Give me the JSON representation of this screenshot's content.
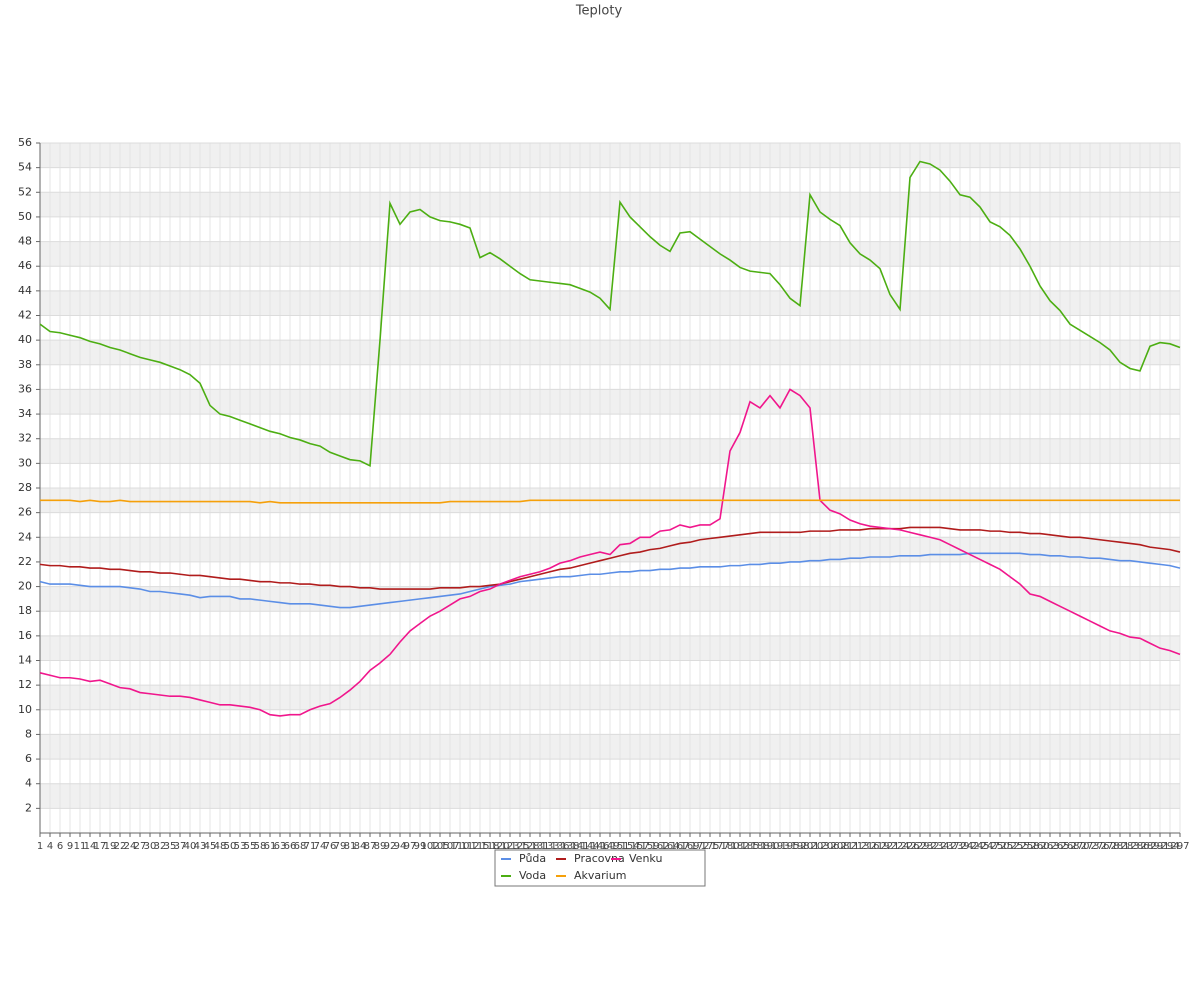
{
  "chart_data": {
    "type": "line",
    "title": "Teploty",
    "categories": [
      1,
      4,
      6,
      9,
      11,
      14,
      17,
      19,
      22,
      24,
      27,
      30,
      32,
      35,
      37,
      40,
      43,
      45,
      48,
      50,
      53,
      55,
      58,
      61,
      63,
      66,
      68,
      71,
      74,
      76,
      79,
      81,
      84,
      87,
      89,
      92,
      94,
      97,
      99,
      102,
      105,
      107,
      110,
      112,
      115,
      118,
      120,
      123,
      125,
      128,
      131,
      133,
      136,
      138,
      141,
      144,
      146,
      149,
      151,
      154,
      157,
      159,
      162,
      164,
      167,
      169,
      172,
      175,
      177,
      180,
      182,
      185,
      188,
      190,
      193,
      195,
      198,
      201,
      203,
      206,
      208,
      211,
      213,
      216,
      219,
      221,
      224,
      226,
      229,
      232,
      234,
      237,
      239,
      242,
      245,
      247,
      250,
      252,
      255,
      258,
      260,
      263,
      265,
      268,
      270,
      273,
      276,
      278,
      281,
      283,
      286,
      289,
      291,
      294,
      297
    ],
    "ylim": [
      0,
      56
    ],
    "yticks": [
      2,
      4,
      6,
      8,
      10,
      12,
      14,
      16,
      18,
      20,
      22,
      24,
      26,
      28,
      30,
      32,
      34,
      36,
      38,
      40,
      42,
      44,
      46,
      48,
      50,
      52,
      54,
      56
    ],
    "grid": true,
    "legend": "bottom",
    "series": [
      {
        "name": "Půda",
        "color": "#5b8ee6",
        "values": [
          20.4,
          20.2,
          20.2,
          20.2,
          20.1,
          20.0,
          20.0,
          20.0,
          20.0,
          19.9,
          19.8,
          19.6,
          19.6,
          19.5,
          19.4,
          19.3,
          19.1,
          19.2,
          19.2,
          19.2,
          19.0,
          19.0,
          18.9,
          18.8,
          18.7,
          18.6,
          18.6,
          18.6,
          18.5,
          18.4,
          18.3,
          18.3,
          18.4,
          18.5,
          18.6,
          18.7,
          18.8,
          18.9,
          19.0,
          19.1,
          19.2,
          19.3,
          19.4,
          19.6,
          19.8,
          20.0,
          20.1,
          20.2,
          20.4,
          20.5,
          20.6,
          20.7,
          20.8,
          20.8,
          20.9,
          21.0,
          21.0,
          21.1,
          21.2,
          21.2,
          21.3,
          21.3,
          21.4,
          21.4,
          21.5,
          21.5,
          21.6,
          21.6,
          21.6,
          21.7,
          21.7,
          21.8,
          21.8,
          21.9,
          21.9,
          22.0,
          22.0,
          22.1,
          22.1,
          22.2,
          22.2,
          22.3,
          22.3,
          22.4,
          22.4,
          22.4,
          22.5,
          22.5,
          22.5,
          22.6,
          22.6,
          22.6,
          22.6,
          22.7,
          22.7,
          22.7,
          22.7,
          22.7,
          22.7,
          22.6,
          22.6,
          22.5,
          22.5,
          22.4,
          22.4,
          22.3,
          22.3,
          22.2,
          22.1,
          22.1,
          22.0,
          21.9,
          21.8,
          21.7,
          21.5
        ]
      },
      {
        "name": "Pracovna",
        "color": "#b01c1c",
        "values": [
          21.8,
          21.7,
          21.7,
          21.6,
          21.6,
          21.5,
          21.5,
          21.4,
          21.4,
          21.3,
          21.2,
          21.2,
          21.1,
          21.1,
          21.0,
          20.9,
          20.9,
          20.8,
          20.7,
          20.6,
          20.6,
          20.5,
          20.4,
          20.4,
          20.3,
          20.3,
          20.2,
          20.2,
          20.1,
          20.1,
          20.0,
          20.0,
          19.9,
          19.9,
          19.8,
          19.8,
          19.8,
          19.8,
          19.8,
          19.8,
          19.9,
          19.9,
          19.9,
          20.0,
          20.0,
          20.1,
          20.2,
          20.4,
          20.6,
          20.8,
          21.0,
          21.2,
          21.4,
          21.5,
          21.7,
          21.9,
          22.1,
          22.3,
          22.5,
          22.7,
          22.8,
          23.0,
          23.1,
          23.3,
          23.5,
          23.6,
          23.8,
          23.9,
          24.0,
          24.1,
          24.2,
          24.3,
          24.4,
          24.4,
          24.4,
          24.4,
          24.4,
          24.5,
          24.5,
          24.5,
          24.6,
          24.6,
          24.6,
          24.7,
          24.7,
          24.7,
          24.7,
          24.8,
          24.8,
          24.8,
          24.8,
          24.7,
          24.6,
          24.6,
          24.6,
          24.5,
          24.5,
          24.4,
          24.4,
          24.3,
          24.3,
          24.2,
          24.1,
          24.0,
          24.0,
          23.9,
          23.8,
          23.7,
          23.6,
          23.5,
          23.4,
          23.2,
          23.1,
          23.0,
          22.8
        ]
      },
      {
        "name": "Venku",
        "color": "#f0168c",
        "values": [
          13.0,
          12.8,
          12.6,
          12.6,
          12.5,
          12.3,
          12.4,
          12.1,
          11.8,
          11.7,
          11.4,
          11.3,
          11.2,
          11.1,
          11.1,
          11.0,
          10.8,
          10.6,
          10.4,
          10.4,
          10.3,
          10.2,
          10.0,
          9.6,
          9.5,
          9.6,
          9.6,
          10.0,
          10.3,
          10.5,
          11.0,
          11.6,
          12.3,
          13.2,
          13.8,
          14.5,
          15.5,
          16.4,
          17.0,
          17.6,
          18.0,
          18.5,
          19.0,
          19.2,
          19.6,
          19.8,
          20.2,
          20.5,
          20.8,
          21.0,
          21.2,
          21.5,
          21.9,
          22.1,
          22.4,
          22.6,
          22.8,
          22.6,
          23.4,
          23.5,
          24.0,
          24.0,
          24.5,
          24.6,
          25.0,
          24.8,
          25.0,
          25.0,
          25.5,
          31.0,
          32.5,
          35.0,
          34.5,
          35.5,
          34.5,
          36.0,
          35.5,
          34.5,
          27.0,
          26.2,
          25.9,
          25.4,
          25.1,
          24.9,
          24.8,
          24.7,
          24.6,
          24.4,
          24.2,
          24.0,
          23.8,
          23.4,
          23.0,
          22.6,
          22.2,
          21.8,
          21.4,
          20.8,
          20.2,
          19.4,
          19.2,
          18.8,
          18.4,
          18.0,
          17.6,
          17.2,
          16.8,
          16.4,
          16.2,
          15.9,
          15.8,
          15.4,
          15.0,
          14.8,
          14.5
        ]
      },
      {
        "name": "Voda",
        "color": "#4cae12",
        "values": [
          41.3,
          40.7,
          40.6,
          40.4,
          40.2,
          39.9,
          39.7,
          39.4,
          39.2,
          38.9,
          38.6,
          38.4,
          38.2,
          37.9,
          37.6,
          37.2,
          36.5,
          34.7,
          34.0,
          33.8,
          33.5,
          33.2,
          32.9,
          32.6,
          32.4,
          32.1,
          31.9,
          31.6,
          31.4,
          30.9,
          30.6,
          30.3,
          30.2,
          29.8,
          40.0,
          51.1,
          49.4,
          50.4,
          50.6,
          50.0,
          49.7,
          49.6,
          49.4,
          49.1,
          46.7,
          47.1,
          46.6,
          46.0,
          45.4,
          44.9,
          44.8,
          44.7,
          44.6,
          44.5,
          44.2,
          43.9,
          43.4,
          42.5,
          51.2,
          50.0,
          49.2,
          48.4,
          47.7,
          47.2,
          48.7,
          48.8,
          48.2,
          47.6,
          47.0,
          46.5,
          45.9,
          45.6,
          45.5,
          45.4,
          44.5,
          43.4,
          42.8,
          51.8,
          50.4,
          49.8,
          49.3,
          47.9,
          47.0,
          46.5,
          45.8,
          43.7,
          42.5,
          53.2,
          54.5,
          54.3,
          53.8,
          52.9,
          51.8,
          51.6,
          50.8,
          49.6,
          49.2,
          48.5,
          47.4,
          46.0,
          44.4,
          43.2,
          42.4,
          41.3,
          40.8,
          40.3,
          39.8,
          39.2,
          38.2,
          37.7,
          37.5,
          39.5,
          39.8,
          39.7,
          39.4
        ]
      },
      {
        "name": "Akvarium",
        "color": "#f5a00a",
        "values": [
          27.0,
          27.0,
          27.0,
          27.0,
          26.9,
          27.0,
          26.9,
          26.9,
          27.0,
          26.9,
          26.9,
          26.9,
          26.9,
          26.9,
          26.9,
          26.9,
          26.9,
          26.9,
          26.9,
          26.9,
          26.9,
          26.9,
          26.8,
          26.9,
          26.8,
          26.8,
          26.8,
          26.8,
          26.8,
          26.8,
          26.8,
          26.8,
          26.8,
          26.8,
          26.8,
          26.8,
          26.8,
          26.8,
          26.8,
          26.8,
          26.8,
          26.9,
          26.9,
          26.9,
          26.9,
          26.9,
          26.9,
          26.9,
          26.9,
          27.0,
          27.0,
          27.0,
          27.0,
          27.0,
          27.0,
          27.0,
          27.0,
          27.0,
          27.0,
          27.0,
          27.0,
          27.0,
          27.0,
          27.0,
          27.0,
          27.0,
          27.0,
          27.0,
          27.0,
          27.0,
          27.0,
          27.0,
          27.0,
          27.0,
          27.0,
          27.0,
          27.0,
          27.0,
          27.0,
          27.0,
          27.0,
          27.0,
          27.0,
          27.0,
          27.0,
          27.0,
          27.0,
          27.0,
          27.0,
          27.0,
          27.0,
          27.0,
          27.0,
          27.0,
          27.0,
          27.0,
          27.0,
          27.0,
          27.0,
          27.0,
          27.0,
          27.0,
          27.0,
          27.0,
          27.0,
          27.0,
          27.0,
          27.0,
          27.0,
          27.0,
          27.0,
          27.0,
          27.0,
          27.0,
          27.0
        ]
      }
    ]
  }
}
